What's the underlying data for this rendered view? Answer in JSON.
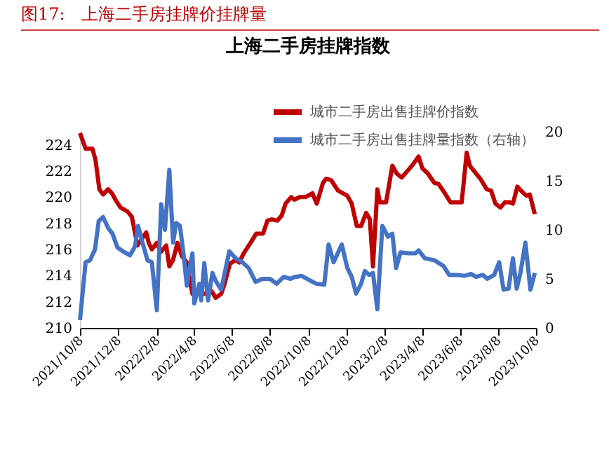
{
  "chart_data": {
    "type": "line",
    "title": "上海二手房挂牌指数",
    "annotations": [
      "图17:   上海二手房挂牌价挂牌量"
    ],
    "xlim": [
      "2021-10-08",
      "2023-10-08"
    ],
    "xticks": [
      {
        "value": "2021-10-08",
        "label": "2021/10/8"
      },
      {
        "value": "2021-12-08",
        "label": "2021/12/8"
      },
      {
        "value": "2022-02-08",
        "label": "2022/2/8"
      },
      {
        "value": "2022-04-08",
        "label": "2022/4/8"
      },
      {
        "value": "2022-06-08",
        "label": "2022/6/8"
      },
      {
        "value": "2022-08-08",
        "label": "2022/8/8"
      },
      {
        "value": "2022-10-08",
        "label": "2022/10/8"
      },
      {
        "value": "2022-12-08",
        "label": "2022/12/8"
      },
      {
        "value": "2023-02-08",
        "label": "2023/2/8"
      },
      {
        "value": "2023-04-08",
        "label": "2023/4/8"
      },
      {
        "value": "2023-06-08",
        "label": "2023/6/8"
      },
      {
        "value": "2023-08-08",
        "label": "2023/8/8"
      },
      {
        "value": "2023-10-08",
        "label": "2023/10/8"
      }
    ],
    "ylim": [
      210,
      225
    ],
    "yticks": [
      210,
      212,
      214,
      216,
      218,
      220,
      222,
      224
    ],
    "y2lim": [
      0,
      20
    ],
    "y2ticks": [
      0,
      5,
      10,
      15,
      20
    ],
    "legend": "top right",
    "grid": false,
    "marker": "none",
    "line_style": "solid",
    "series": [
      {
        "name": "城市二手房出售挂牌价指数",
        "color": "#c00000",
        "x": [
          "2021-10-08",
          "2021-10-17",
          "2021-10-28",
          "2021-11-02",
          "2021-11-08",
          "2021-11-14",
          "2021-11-22",
          "2021-11-28",
          "2021-12-05",
          "2021-12-12",
          "2021-12-23",
          "2021-12-30",
          "2022-01-08",
          "2022-01-15",
          "2022-01-22",
          "2022-01-26",
          "2022-01-31",
          "2022-02-08",
          "2022-02-14",
          "2022-02-23",
          "2022-02-28",
          "2022-03-06",
          "2022-03-13",
          "2022-03-20",
          "2022-03-28",
          "2022-04-02",
          "2022-04-06",
          "2022-04-14",
          "2022-04-25",
          "2022-05-07",
          "2022-05-13",
          "2022-05-22",
          "2022-05-27",
          "2022-06-05",
          "2022-06-14",
          "2022-06-20",
          "2022-06-27",
          "2022-07-08",
          "2022-07-17",
          "2022-07-28",
          "2022-08-04",
          "2022-08-11",
          "2022-08-20",
          "2022-08-27",
          "2022-09-02",
          "2022-09-11",
          "2022-09-16",
          "2022-09-25",
          "2022-10-04",
          "2022-10-15",
          "2022-10-22",
          "2022-11-01",
          "2022-11-06",
          "2022-11-14",
          "2022-11-25",
          "2022-12-10",
          "2022-12-17",
          "2022-12-25",
          "2023-01-01",
          "2023-01-09",
          "2023-01-15",
          "2023-01-20",
          "2023-01-27",
          "2023-01-31",
          "2023-02-10",
          "2023-02-20",
          "2023-02-27",
          "2023-03-07",
          "2023-03-18",
          "2023-03-25",
          "2023-04-03",
          "2023-04-09",
          "2023-04-18",
          "2023-04-28",
          "2023-05-05",
          "2023-05-15",
          "2023-05-24",
          "2023-06-04",
          "2023-06-11",
          "2023-06-19",
          "2023-06-24",
          "2023-07-04",
          "2023-07-11",
          "2023-07-21",
          "2023-07-28",
          "2023-08-04",
          "2023-08-12",
          "2023-08-19",
          "2023-08-27",
          "2023-09-01",
          "2023-09-08",
          "2023-09-18",
          "2023-09-23",
          "2023-09-28",
          "2023-10-06"
        ],
        "values": [
          224.9,
          223.7,
          223.7,
          222.8,
          220.6,
          220.2,
          220.6,
          220.3,
          219.7,
          219.2,
          218.9,
          218.5,
          216.3,
          216.8,
          217.3,
          216.5,
          216.0,
          216.5,
          215.8,
          216.3,
          214.7,
          215.2,
          216.5,
          215.5,
          215.0,
          213.6,
          212.6,
          212.9,
          212.6,
          212.8,
          212.3,
          212.6,
          213.3,
          214.9,
          215.2,
          215.0,
          215.7,
          216.5,
          217.2,
          217.2,
          218.2,
          218.3,
          218.2,
          218.6,
          219.5,
          220.0,
          219.8,
          220.0,
          220.0,
          220.3,
          219.5,
          221.1,
          221.4,
          221.3,
          220.5,
          220.1,
          219.5,
          217.8,
          217.8,
          218.8,
          218.3,
          214.7,
          220.6,
          219.6,
          219.6,
          222.4,
          221.8,
          221.5,
          222.1,
          222.5,
          223.1,
          222.2,
          221.8,
          221.1,
          221.0,
          220.3,
          219.6,
          219.6,
          219.6,
          223.4,
          222.4,
          221.8,
          221.4,
          220.6,
          220.5,
          219.5,
          219.2,
          219.6,
          219.6,
          219.5,
          220.8,
          220.3,
          220.1,
          220.2,
          218.7
        ]
      },
      {
        "name": "城市二手房出售挂牌量指数（右轴）",
        "color": "#4472c4",
        "axis": "y2",
        "x": [
          "2021-10-08",
          "2021-10-17",
          "2021-10-24",
          "2021-11-01",
          "2021-11-07",
          "2021-11-14",
          "2021-11-22",
          "2021-11-29",
          "2021-12-07",
          "2021-12-16",
          "2021-12-27",
          "2022-01-04",
          "2022-01-09",
          "2022-01-16",
          "2022-01-24",
          "2022-01-31",
          "2022-02-08",
          "2022-02-15",
          "2022-02-21",
          "2022-02-28",
          "2022-03-06",
          "2022-03-11",
          "2022-03-17",
          "2022-03-23",
          "2022-03-28",
          "2022-04-02",
          "2022-04-06",
          "2022-04-09",
          "2022-04-17",
          "2022-04-20",
          "2022-04-25",
          "2022-05-01",
          "2022-05-08",
          "2022-05-14",
          "2022-05-22",
          "2022-06-04",
          "2022-06-14",
          "2022-06-25",
          "2022-07-05",
          "2022-07-16",
          "2022-07-27",
          "2022-08-08",
          "2022-08-19",
          "2022-08-30",
          "2022-09-10",
          "2022-09-17",
          "2022-09-28",
          "2022-10-15",
          "2022-10-22",
          "2022-11-03",
          "2022-11-10",
          "2022-11-18",
          "2022-12-01",
          "2022-12-10",
          "2022-12-17",
          "2022-12-24",
          "2023-01-01",
          "2023-01-07",
          "2023-01-14",
          "2023-01-20",
          "2023-01-27",
          "2023-02-04",
          "2023-02-13",
          "2023-02-20",
          "2023-02-26",
          "2023-03-05",
          "2023-03-18",
          "2023-03-29",
          "2023-04-03",
          "2023-04-13",
          "2023-04-28",
          "2023-05-13",
          "2023-05-22",
          "2023-06-04",
          "2023-06-15",
          "2023-06-26",
          "2023-07-04",
          "2023-07-15",
          "2023-07-22",
          "2023-08-02",
          "2023-08-10",
          "2023-08-17",
          "2023-08-25",
          "2023-09-01",
          "2023-09-07",
          "2023-09-13",
          "2023-09-21",
          "2023-09-29",
          "2023-10-06"
        ],
        "values": [
          0.8,
          6.7,
          6.9,
          8.0,
          10.9,
          11.3,
          10.2,
          9.6,
          8.2,
          7.8,
          7.4,
          8.3,
          10.4,
          8.7,
          6.9,
          6.7,
          1.8,
          12.6,
          10.0,
          16.1,
          8.7,
          10.7,
          10.4,
          7.4,
          4.3,
          6.3,
          7.6,
          2.5,
          4.5,
          2.8,
          6.6,
          2.8,
          5.6,
          4.7,
          3.9,
          7.8,
          7.1,
          6.7,
          6.1,
          4.7,
          5.0,
          5.0,
          4.5,
          5.2,
          5.0,
          5.2,
          5.3,
          4.7,
          4.5,
          4.4,
          8.5,
          6.7,
          8.5,
          6.1,
          5.2,
          3.5,
          4.5,
          5.8,
          5.4,
          5.6,
          1.9,
          10.4,
          9.3,
          9.6,
          6.1,
          7.7,
          7.6,
          7.6,
          7.9,
          7.1,
          6.9,
          6.3,
          5.4,
          5.4,
          5.3,
          5.5,
          5.2,
          5.4,
          5.0,
          5.4,
          6.7,
          3.9,
          4.0,
          7.1,
          4.0,
          5.6,
          8.7,
          3.9,
          5.6
        ]
      }
    ]
  }
}
